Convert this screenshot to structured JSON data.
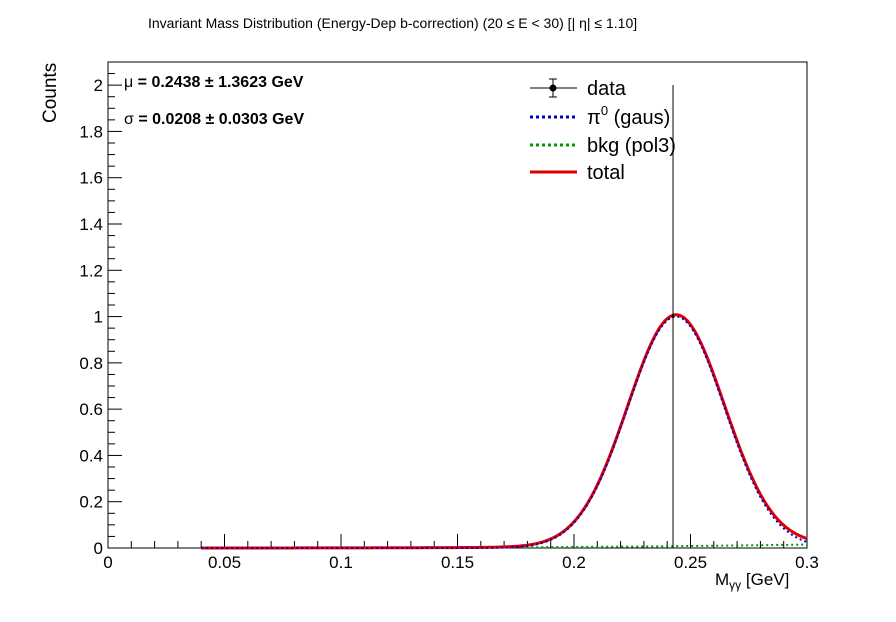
{
  "title": "Invariant Mass Distribution (Energy-Dep b-correction)   (20      ≤ E < 30)   [| η| ≤ 1.10]",
  "chart_data": {
    "type": "line",
    "xlabel": "M",
    "xlabel_sub": "γγ",
    "xlabel_unit": "  [GeV]",
    "ylabel": "Counts",
    "xlim": [
      0,
      0.3
    ],
    "ylim": [
      0,
      2.1
    ],
    "x_ticks": [
      "0",
      "0.05",
      "0.1",
      "0.15",
      "0.2",
      "0.25",
      "0.3"
    ],
    "y_ticks": [
      "0",
      "0.2",
      "0.4",
      "0.6",
      "0.8",
      "1",
      "1.2",
      "1.4",
      "1.6",
      "1.8",
      "2"
    ],
    "grid": false,
    "legend_position": "top-right",
    "annotations": [
      {
        "symbol": "μ",
        "text": " = 0.2438  ± 1.3623 GeV"
      },
      {
        "symbol": "σ",
        "text": " = 0.0208  ± 0.0303 GeV"
      }
    ],
    "data_points": [
      {
        "x": 0.2425,
        "y": 1.0,
        "yerr_low": 1.0,
        "yerr_high": 1.0
      }
    ],
    "series": [
      {
        "name": "data",
        "kind": "points",
        "color": "#000000"
      },
      {
        "name": "π⁰ (gaus)",
        "kind": "function",
        "style": "dotted",
        "color": "#0000cc",
        "mean": 0.2438,
        "sigma": 0.0208,
        "amplitude": 1.0,
        "x_range": [
          0.04,
          0.3
        ]
      },
      {
        "name": "bkg (pol3)",
        "kind": "function",
        "style": "dotted",
        "color": "#009900",
        "coefficients": [
          0,
          0,
          0,
          0.55
        ],
        "x_range": [
          0.04,
          0.3
        ]
      },
      {
        "name": "total",
        "kind": "function",
        "style": "solid",
        "color": "#dd0000",
        "x_range": [
          0.04,
          0.3
        ]
      }
    ]
  },
  "legend": {
    "data": "data",
    "signal_prefix": "π",
    "signal_sup": "0",
    "signal_suffix": " (gaus)",
    "bkg": "bkg (pol3)",
    "total": "total"
  }
}
